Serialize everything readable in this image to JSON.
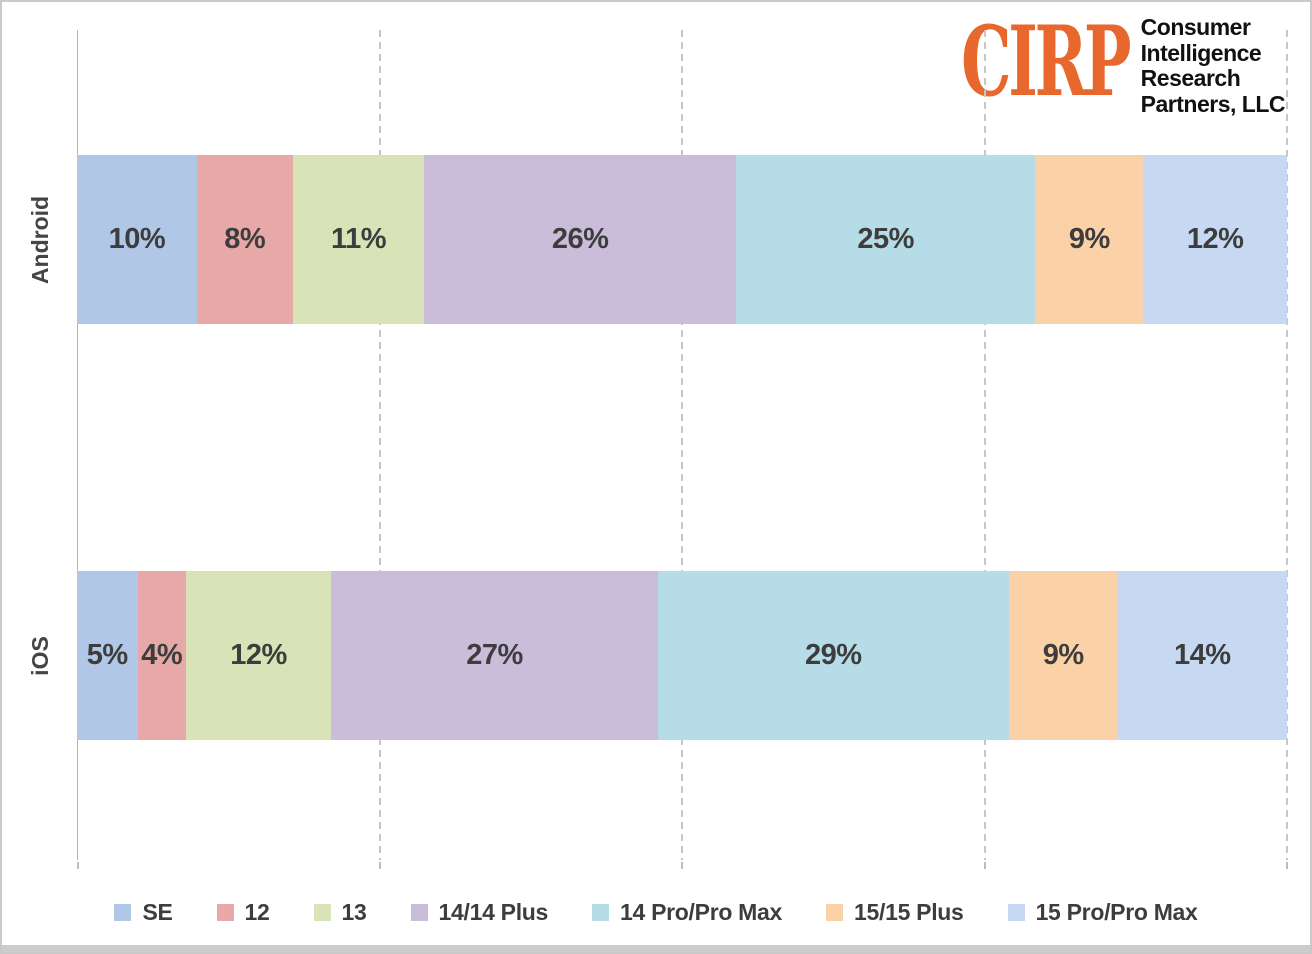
{
  "logo": {
    "acronym": "CIRP",
    "name_lines": [
      "Consumer",
      "Intelligence",
      "Research",
      "Partners, LLC"
    ],
    "accent_color": "#E8672C"
  },
  "chart_data": {
    "type": "bar",
    "subtype": "100%-stacked-horizontal",
    "categories": [
      "Android",
      "iOS"
    ],
    "series": [
      {
        "name": "SE",
        "color": "#B1C7E7",
        "values": [
          10,
          5
        ]
      },
      {
        "name": "12",
        "color": "#E7A8A8",
        "values": [
          8,
          4
        ]
      },
      {
        "name": "13",
        "color": "#D8E4B8",
        "values": [
          11,
          12
        ]
      },
      {
        "name": "14/14 Plus",
        "color": "#CABDDA",
        "values": [
          26,
          27
        ]
      },
      {
        "name": "14 Pro/Pro Max",
        "color": "#B6DCE8",
        "values": [
          25,
          29
        ]
      },
      {
        "name": "15/15 Plus",
        "color": "#FBD2A7",
        "values": [
          9,
          9
        ]
      },
      {
        "name": "15 Pro/Pro Max",
        "color": "#C7D8F2",
        "values": [
          12,
          14
        ]
      }
    ],
    "value_suffix": "%",
    "data_labels": true,
    "xlim": [
      0,
      100
    ],
    "gridlines_percent": [
      25,
      50,
      75,
      100
    ],
    "gridline_style": "dashed-vertical",
    "legend_position": "bottom",
    "title": "",
    "xlabel": "",
    "ylabel": ""
  }
}
